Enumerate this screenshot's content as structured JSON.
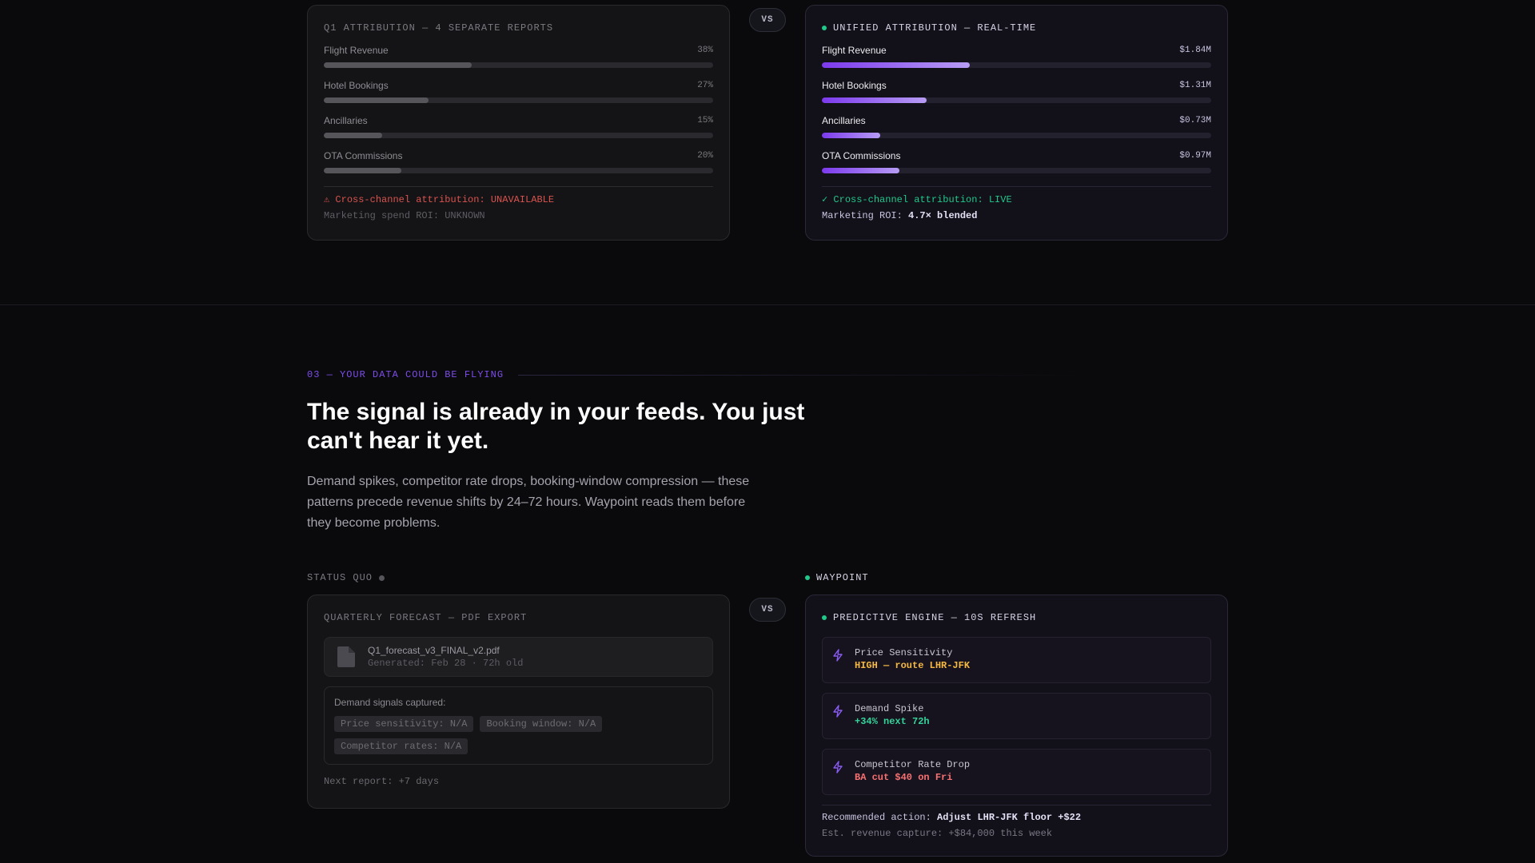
{
  "top_compare": {
    "left": {
      "title": "Q1 ATTRIBUTION — 4 SEPARATE REPORTS",
      "bars": [
        {
          "label": "Flight Revenue",
          "value": "38%",
          "fraction": 0.38
        },
        {
          "label": "Hotel Bookings",
          "value": "27%",
          "fraction": 0.27
        },
        {
          "label": "Ancillaries",
          "value": "15%",
          "fraction": 0.15
        },
        {
          "label": "OTA Commissions",
          "value": "20%",
          "fraction": 0.2
        }
      ],
      "warning": "⚠ Cross-channel attribution: UNAVAILABLE",
      "roi": "Marketing spend ROI: UNKNOWN",
      "warning_color": "#d9534f"
    },
    "vs_label": "VS",
    "right": {
      "title": "UNIFIED ATTRIBUTION — REAL-TIME",
      "bars": [
        {
          "label": "Flight Revenue",
          "value": "$1.84M",
          "fraction": 0.38
        },
        {
          "label": "Hotel Bookings",
          "value": "$1.31M",
          "fraction": 0.27
        },
        {
          "label": "Ancillaries",
          "value": "$0.73M",
          "fraction": 0.15
        },
        {
          "label": "OTA Commissions",
          "value": "$0.97M",
          "fraction": 0.2
        }
      ],
      "status": "✓ Cross-channel attribution: LIVE",
      "roi_label": "Marketing ROI: ",
      "roi_value": "4.7× blended",
      "status_color": "#22c88a"
    }
  },
  "section": {
    "label": "03 — YOUR DATA COULD BE FLYING",
    "headline": "The signal is already in your feeds. You just can't hear it yet.",
    "description": "Demand spikes, competitor rate drops, booking-window compression — these patterns precede revenue shifts by 24–72 hours. Waypoint reads them before they become problems.",
    "accent_color": "#7c4dea"
  },
  "status_quo": {
    "column_label": "STATUS QUO",
    "card_title": "QUARTERLY FORECAST — PDF EXPORT",
    "file_name": "Q1_forecast_v3_FINAL_v2.pdf",
    "file_generated": "Generated: Feb 28 · 72h old",
    "file_icon": "document-icon",
    "signals_title": "Demand signals captured:",
    "chips": [
      "Price sensitivity: N/A",
      "Booking window: N/A",
      "Competitor rates: N/A"
    ],
    "next_report": "Next report: +7 days"
  },
  "vs_label_2": "VS",
  "waypoint": {
    "column_label": "WAYPOINT",
    "card_title": "PREDICTIVE ENGINE — 10S REFRESH",
    "signals": [
      {
        "title": "Price Sensitivity",
        "value": "HIGH — route LHR-JFK",
        "color": "#f5b942",
        "icon": "bolt-icon"
      },
      {
        "title": "Demand Spike",
        "value": "+34% next 72h",
        "color": "#34d399",
        "icon": "bolt-icon"
      },
      {
        "title": "Competitor Rate Drop",
        "value": "BA cut $40 on Fri",
        "color": "#f87171",
        "icon": "bolt-icon"
      }
    ],
    "recommended_label": "Recommended action: ",
    "recommended_value": "Adjust LHR-JFK floor +$22",
    "capture": "Est. revenue capture: +$84,000 this week"
  }
}
